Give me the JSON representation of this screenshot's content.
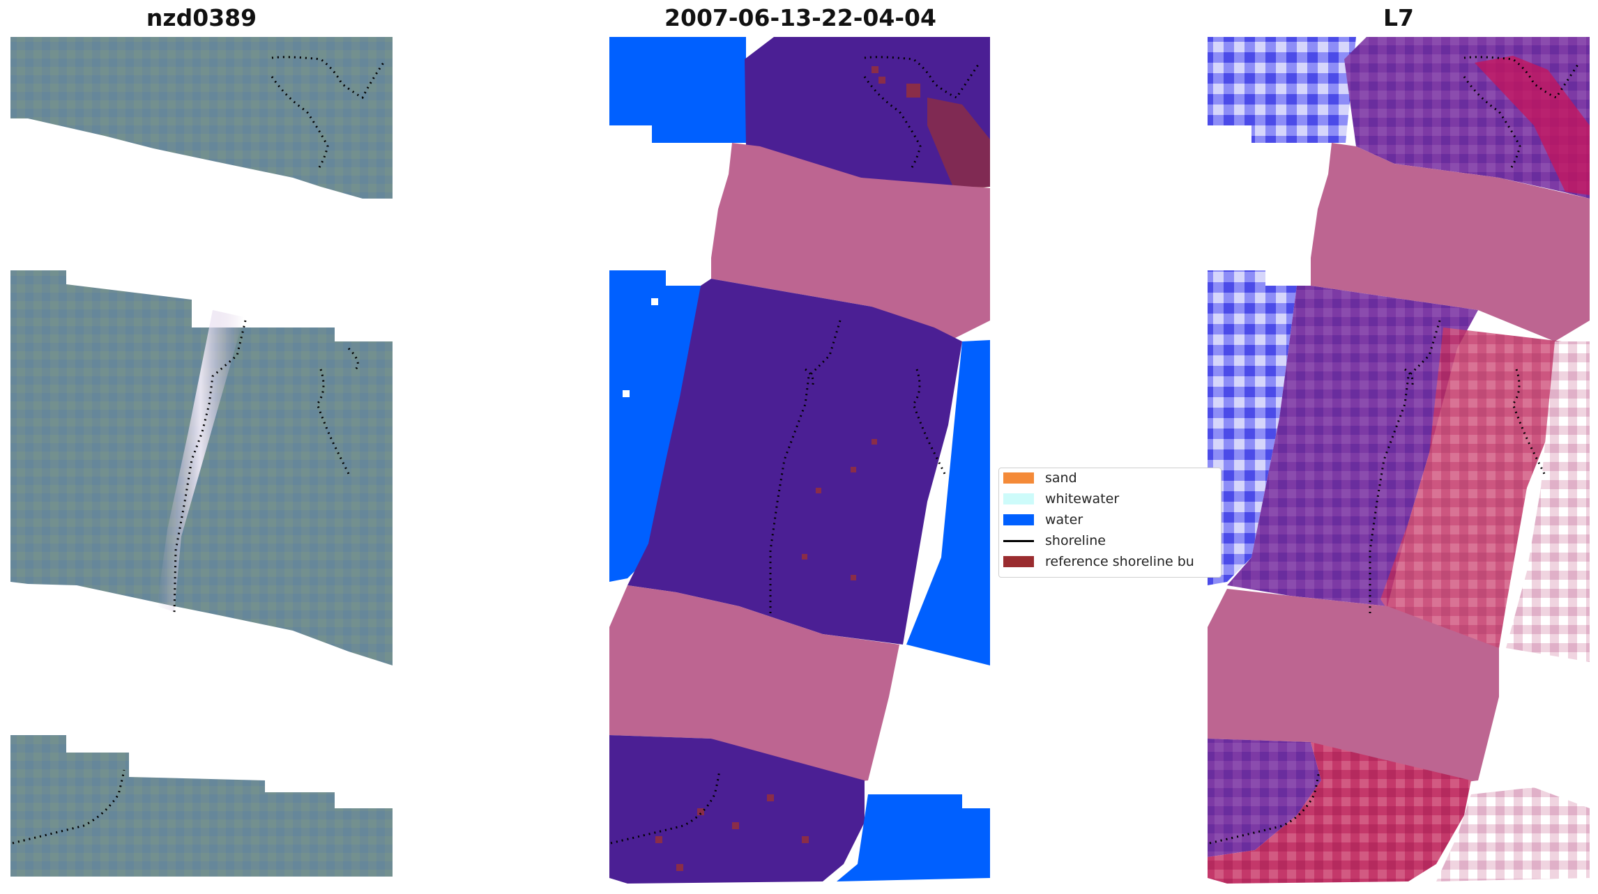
{
  "panels": {
    "left_title": "nzd0389",
    "center_title": "2007-06-13-22-04-04",
    "right_title": "L7"
  },
  "legend": {
    "items": [
      {
        "label": "sand",
        "color": "#f48a38",
        "kind": "patch"
      },
      {
        "label": "whitewater",
        "color": "#cdfbfa",
        "kind": "patch"
      },
      {
        "label": "water",
        "color": "#0060ff",
        "kind": "patch"
      },
      {
        "label": "shoreline",
        "color": "#000000",
        "kind": "line"
      },
      {
        "label": "reference shoreline bu",
        "color": "#9a2c2f",
        "kind": "patch"
      }
    ]
  },
  "colors": {
    "rgb_base": "#6d8c94",
    "class_water": "#0060ff",
    "class_land": "#4b1f94",
    "nodata_band": "#bd6591",
    "buffer": "#8a2d48",
    "index_blue": "#6e6ef5",
    "index_purple": "#7e3da6",
    "index_red": "#c0245a"
  }
}
